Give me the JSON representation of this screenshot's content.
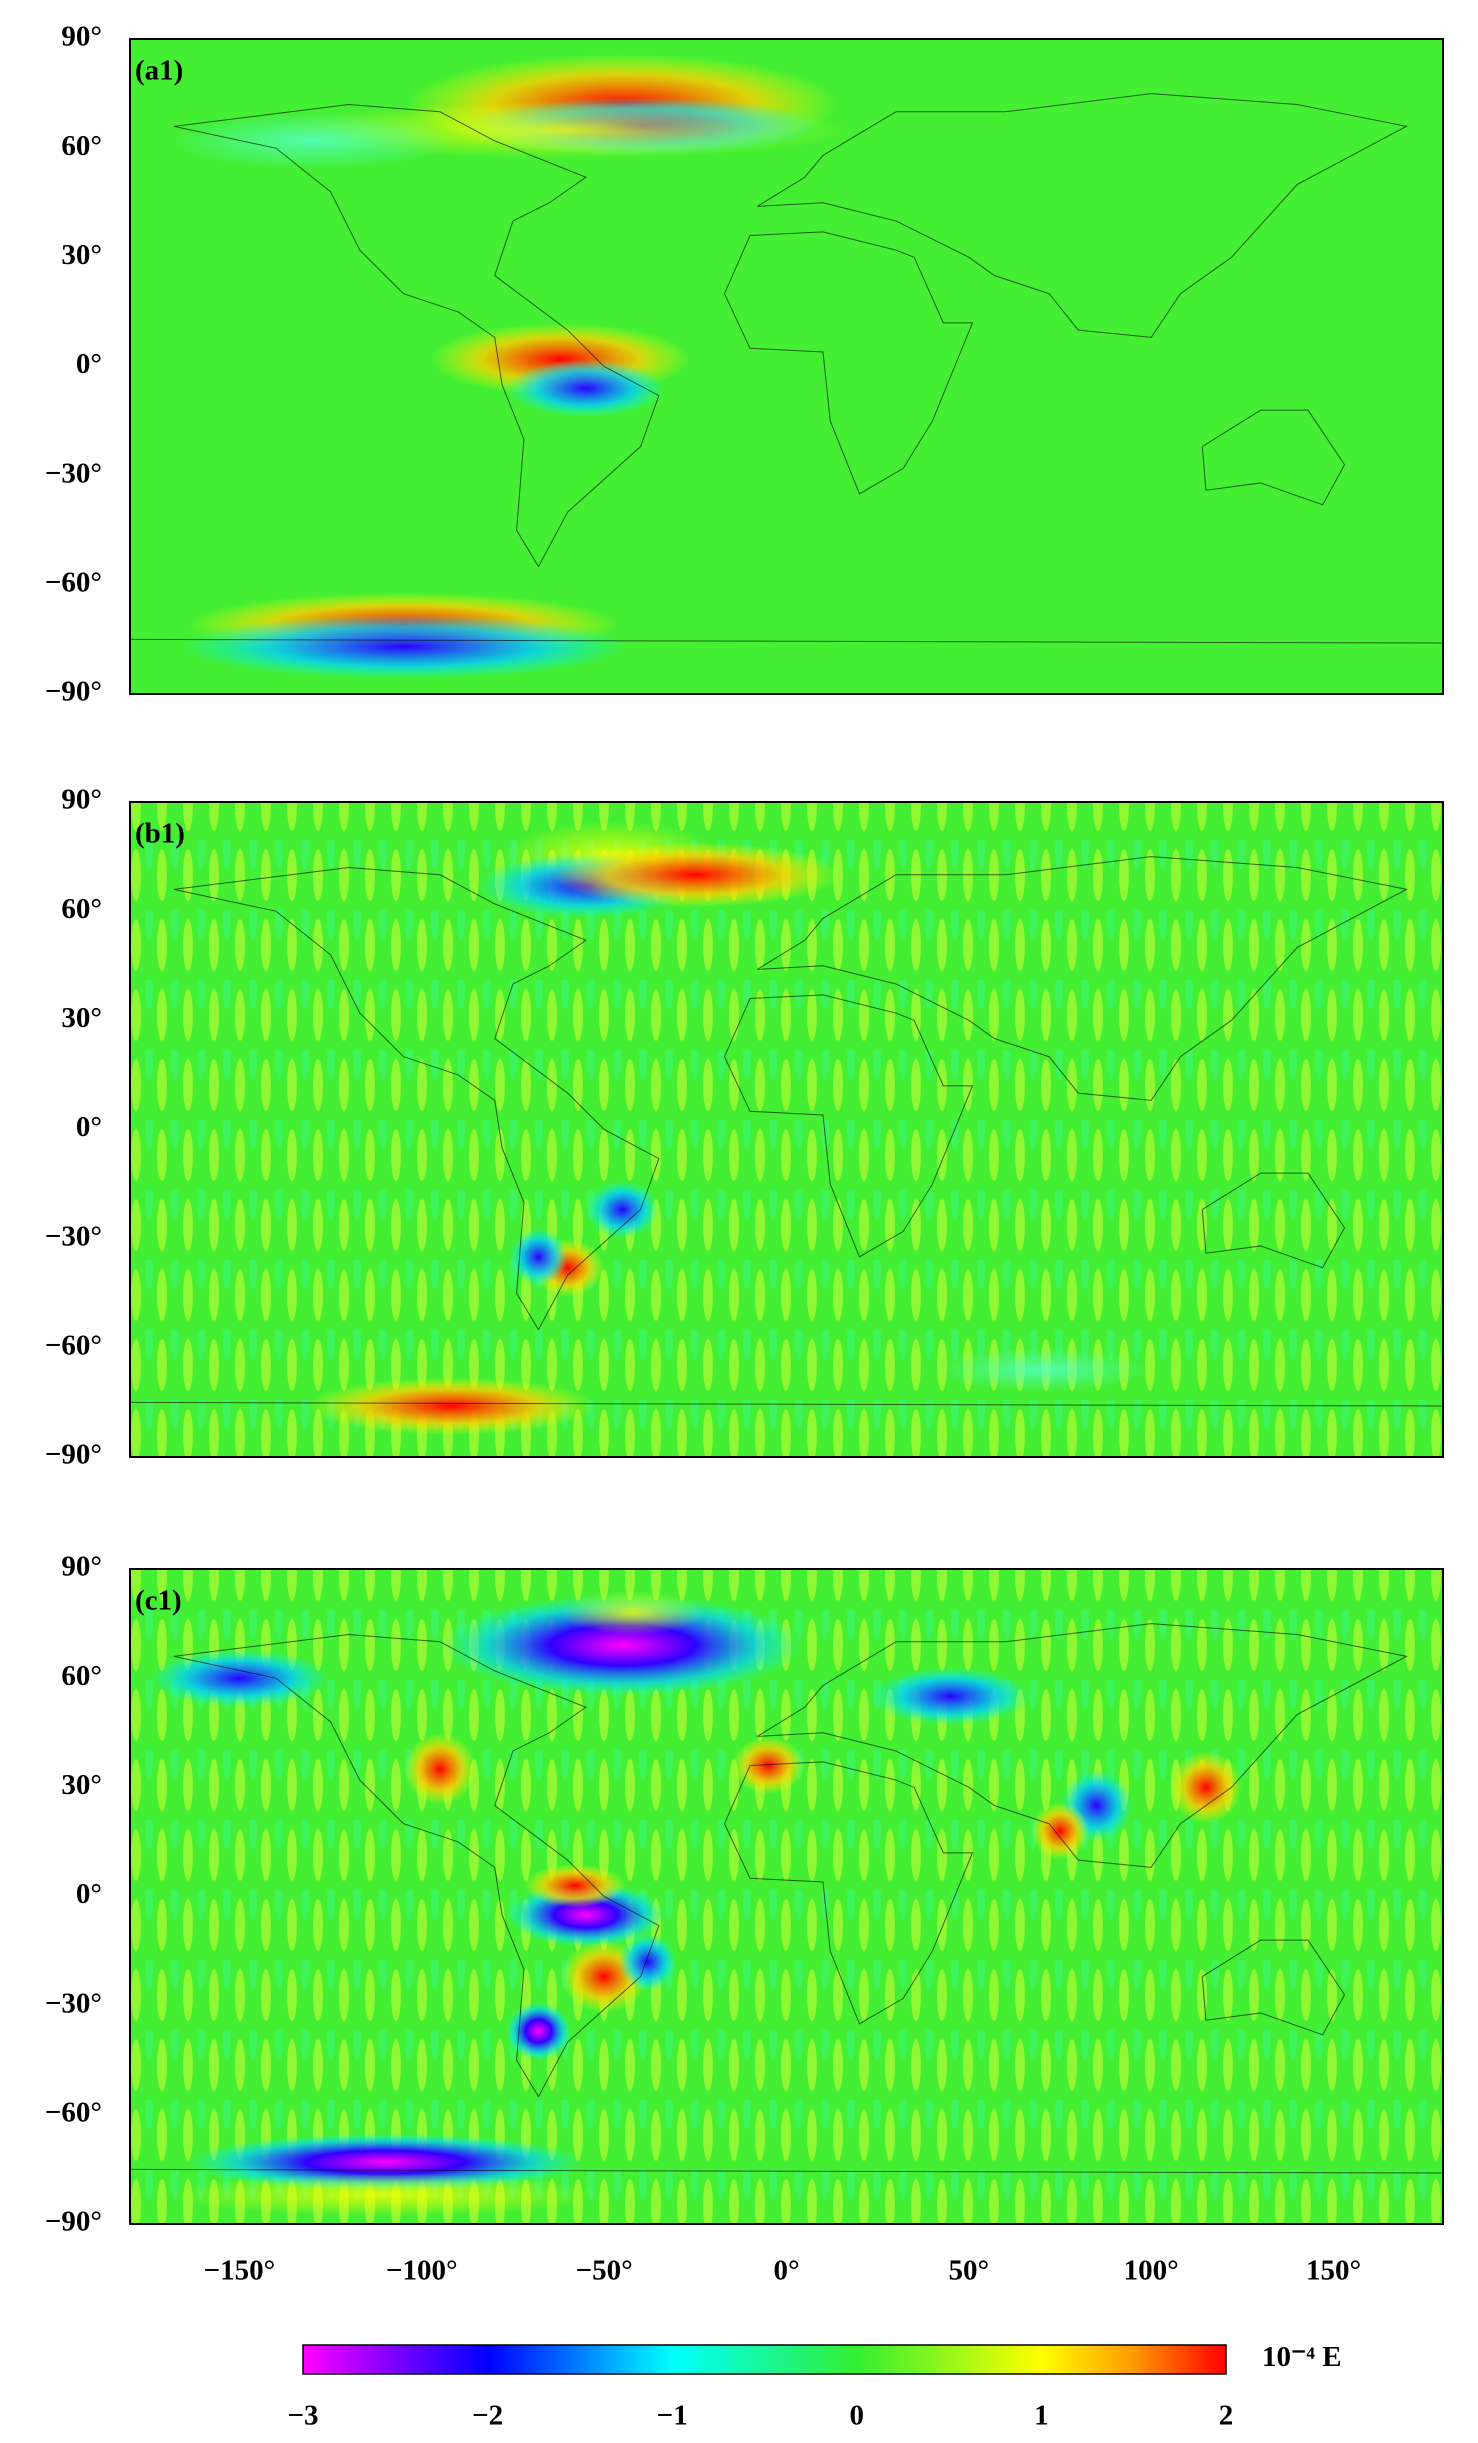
{
  "panels": [
    {
      "label": "(a1)"
    },
    {
      "label": "(b1)"
    },
    {
      "label": "(c1)"
    }
  ],
  "lat_axis": {
    "lim": [
      -90,
      90
    ],
    "ticks": [
      {
        "value": 90,
        "label": "90°"
      },
      {
        "value": 60,
        "label": "60°"
      },
      {
        "value": 30,
        "label": "30°"
      },
      {
        "value": 0,
        "label": "0°"
      },
      {
        "value": -30,
        "label": "−30°"
      },
      {
        "value": -60,
        "label": "−60°"
      },
      {
        "value": -90,
        "label": "−90°"
      }
    ]
  },
  "lon_axis": {
    "lim": [
      -180,
      180
    ],
    "ticks": [
      {
        "value": -150,
        "label": "−150°"
      },
      {
        "value": -100,
        "label": "−100°"
      },
      {
        "value": -50,
        "label": "−50°"
      },
      {
        "value": 0,
        "label": "0°"
      },
      {
        "value": 50,
        "label": "50°"
      },
      {
        "value": 100,
        "label": "100°"
      },
      {
        "value": 150,
        "label": "150°"
      }
    ]
  },
  "colorbar": {
    "lim": [
      -3,
      2
    ],
    "unit": "10⁻⁴ E",
    "ticks": [
      {
        "value": -3,
        "label": "−3"
      },
      {
        "value": -2,
        "label": "−2"
      },
      {
        "value": -1,
        "label": "−1"
      },
      {
        "value": 0,
        "label": "0"
      },
      {
        "value": 1,
        "label": "1"
      },
      {
        "value": 2,
        "label": "2"
      }
    ],
    "stops": [
      {
        "value": -3,
        "color": "#ff00ff"
      },
      {
        "value": -2.5,
        "color": "#7a00ff"
      },
      {
        "value": -2,
        "color": "#0000ff"
      },
      {
        "value": -1,
        "color": "#00ffff"
      },
      {
        "value": 0,
        "color": "#33ee33"
      },
      {
        "value": 1,
        "color": "#ffff00"
      },
      {
        "value": 1.5,
        "color": "#ff9900"
      },
      {
        "value": 2,
        "color": "#ff0000"
      }
    ]
  },
  "background_color": "#44ee33"
}
